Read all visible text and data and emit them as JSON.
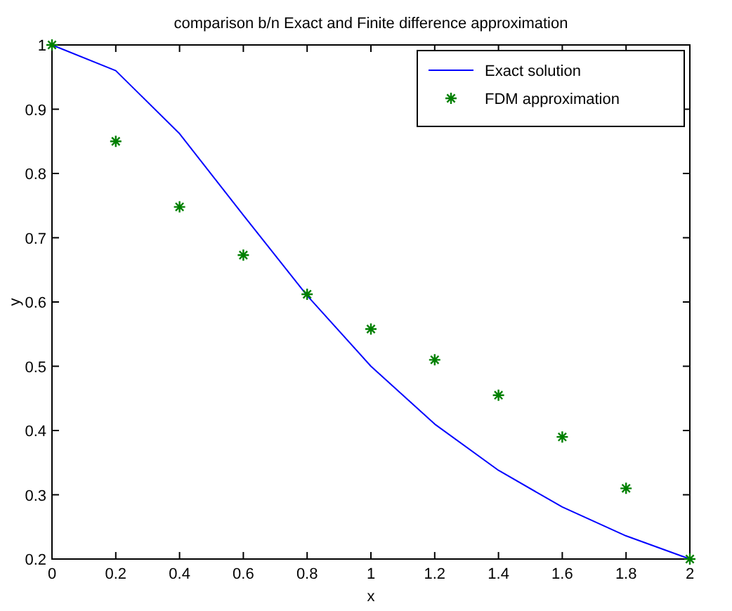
{
  "chart_data": {
    "type": "line",
    "title": "comparison b/n Exact and  Finite difference approximation",
    "xlabel": "x",
    "ylabel": "y",
    "x": [
      0,
      0.2,
      0.4,
      0.6,
      0.8,
      1,
      1.2,
      1.4,
      1.6,
      1.8,
      2
    ],
    "series": [
      {
        "name": "Exact solution",
        "type": "line",
        "color": "#0000ff",
        "line_style": "solid",
        "marker": "none",
        "values": [
          1,
          0.96,
          0.862,
          0.735,
          0.61,
          0.5,
          0.41,
          0.338,
          0.281,
          0.236,
          0.2
        ]
      },
      {
        "name": "FDM approximation",
        "type": "scatter",
        "color": "#008000",
        "marker": "cross",
        "values": [
          1,
          0.85,
          0.748,
          0.673,
          0.612,
          0.558,
          0.51,
          0.455,
          0.39,
          0.31,
          0.2
        ]
      }
    ],
    "xlim": [
      0,
      2
    ],
    "xticks": [
      0,
      0.2,
      0.4,
      0.6,
      0.8,
      1,
      1.2,
      1.4,
      1.6,
      1.8,
      2
    ],
    "ylim": [
      0.2,
      1
    ],
    "yticks": [
      0.2,
      0.3,
      0.4,
      0.5,
      0.6,
      0.7,
      0.8,
      0.9,
      1
    ],
    "grid": false,
    "legend": "top right"
  }
}
